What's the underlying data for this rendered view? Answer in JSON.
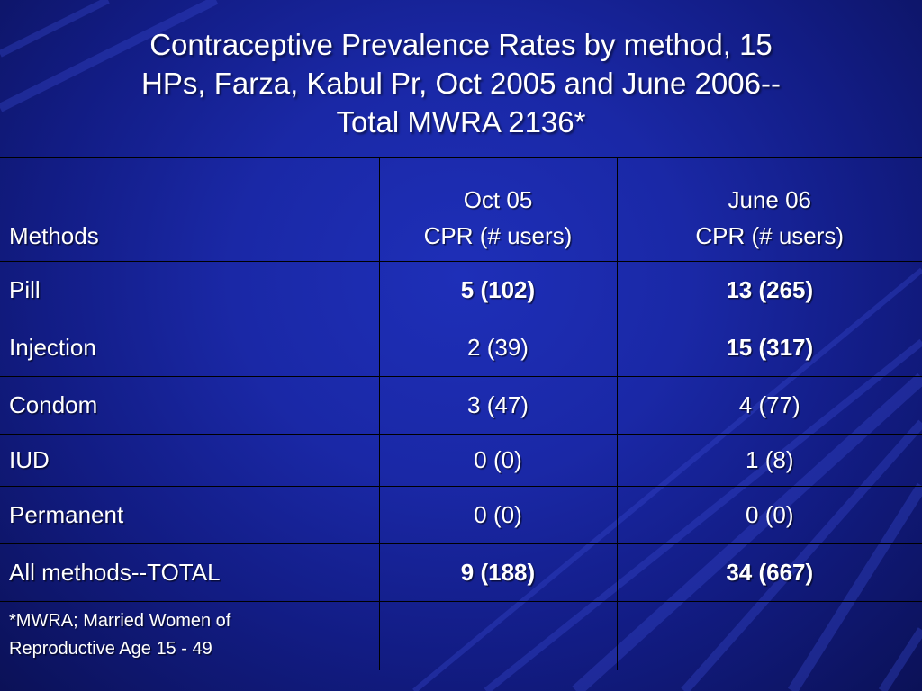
{
  "title": {
    "line1": "Contraceptive Prevalence Rates by method, 15",
    "line2": "HPs, Farza, Kabul Pr, Oct 2005 and June 2006--",
    "line3": "Total MWRA 2136*"
  },
  "table": {
    "header": {
      "methods": "Methods",
      "col1_line1": "Oct 05",
      "col1_line2": "CPR (# users)",
      "col2_line1": "June 06",
      "col2_line2": "CPR (# users)"
    },
    "rows": [
      {
        "method": "Pill",
        "oct05": "5 (102)",
        "jun06": "13 (265)"
      },
      {
        "method": "Injection",
        "oct05": "2 (39)",
        "jun06": "15 (317)"
      },
      {
        "method": "Condom",
        "oct05": "3 (47)",
        "jun06": "4 (77)"
      },
      {
        "method": "IUD",
        "oct05": "0 (0)",
        "jun06": "1 (8)"
      },
      {
        "method": "Permanent",
        "oct05": "0 (0)",
        "jun06": "0 (0)"
      },
      {
        "method": "All methods--TOTAL",
        "oct05": "9 (188)",
        "jun06": "34 (667)"
      }
    ],
    "footnote": {
      "line1": "*MWRA; Married Women of",
      "line2": "Reproductive Age 15 - 49"
    }
  },
  "colors": {
    "background": "#1a28a6",
    "text": "#ffffff",
    "highlight": "#ffff33",
    "grid": "#000000"
  }
}
